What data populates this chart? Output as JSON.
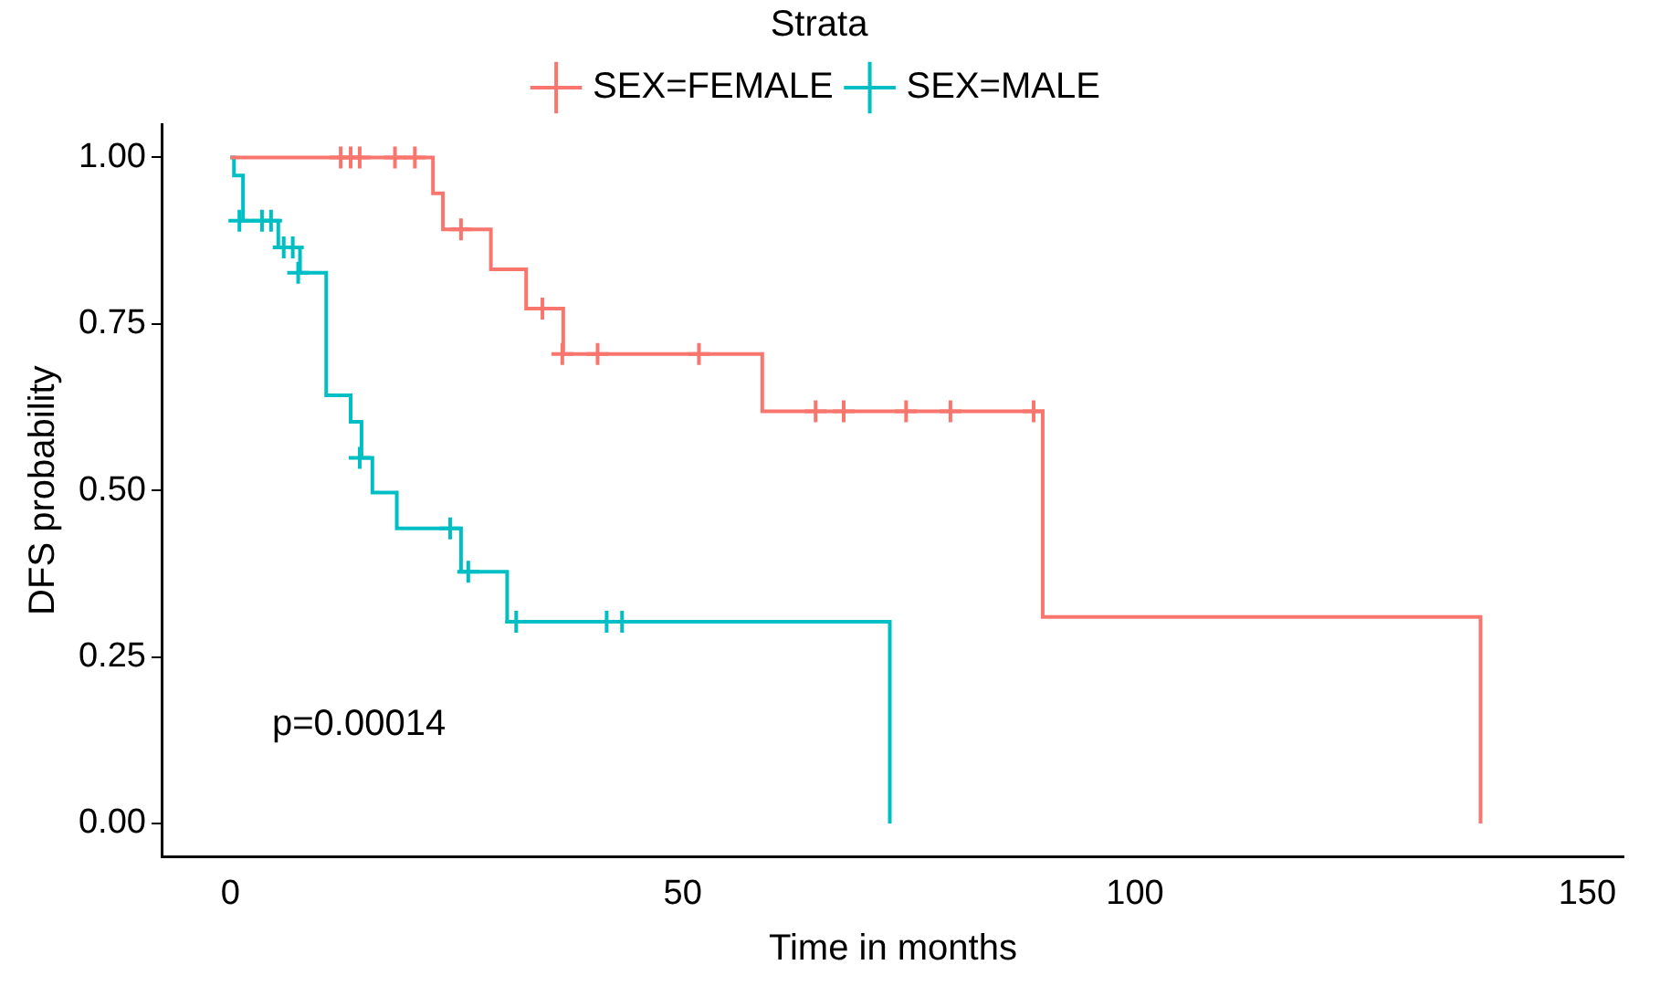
{
  "chart_data": {
    "type": "step",
    "xlabel": "Time in months",
    "ylabel": "DFS probability",
    "legend_title": "Strata",
    "legend": "top",
    "grid": false,
    "xlim": [
      -7.5,
      154
    ],
    "xticks": [
      0,
      50,
      100,
      150
    ],
    "ylim": [
      -0.05,
      1.05
    ],
    "yticks": [
      {
        "value": 0,
        "label": "0.00"
      },
      {
        "value": 0.25,
        "label": "0.25"
      },
      {
        "value": 0.5,
        "label": "0.50"
      },
      {
        "value": 0.75,
        "label": "0.75"
      },
      {
        "value": 1,
        "label": "1.00"
      }
    ],
    "annotations": [
      "p=0.00014"
    ],
    "series": [
      {
        "name": "SEX=FEMALE",
        "color": "#f8766d",
        "x": [
          0,
          22.4,
          23.5,
          28.8,
          32.7,
          36.8,
          58.8,
          89.8,
          138.2
        ],
        "values": [
          1,
          0.946,
          0.892,
          0.832,
          0.773,
          0.705,
          0.619,
          0.31,
          0
        ]
      },
      {
        "name": "SEX=MALE",
        "color": "#00bfc4",
        "x": [
          0,
          0.4,
          1.4,
          5.3,
          7.7,
          10.6,
          13.3,
          14.5,
          15.7,
          18.4,
          25.5,
          30.6,
          72.9
        ],
        "values": [
          1,
          0.973,
          0.905,
          0.865,
          0.827,
          0.643,
          0.603,
          0.549,
          0.497,
          0.443,
          0.378,
          0.303,
          0
        ]
      },
      {
        "type": "scatter",
        "marker": "cross",
        "color": "#f8766d",
        "x": [
          12.2,
          13.3,
          14.3,
          18.2,
          20.4,
          25.5,
          34.5,
          36.7,
          40.6,
          51.8,
          64.7,
          67.8,
          74.7,
          79.6,
          88.8
        ],
        "values": [
          1,
          1,
          1,
          1,
          1,
          0.892,
          0.773,
          0.705,
          0.705,
          0.705,
          0.619,
          0.619,
          0.619,
          0.619,
          0.619
        ]
      },
      {
        "type": "scatter",
        "marker": "cross",
        "color": "#00bfc4",
        "x": [
          1.0,
          3.5,
          4.5,
          5.9,
          6.9,
          7.5,
          14.3,
          24.3,
          26.3,
          31.6,
          41.6,
          43.3
        ],
        "values": [
          0.905,
          0.905,
          0.905,
          0.865,
          0.865,
          0.827,
          0.549,
          0.443,
          0.378,
          0.303,
          0.303,
          0.303
        ]
      }
    ]
  }
}
